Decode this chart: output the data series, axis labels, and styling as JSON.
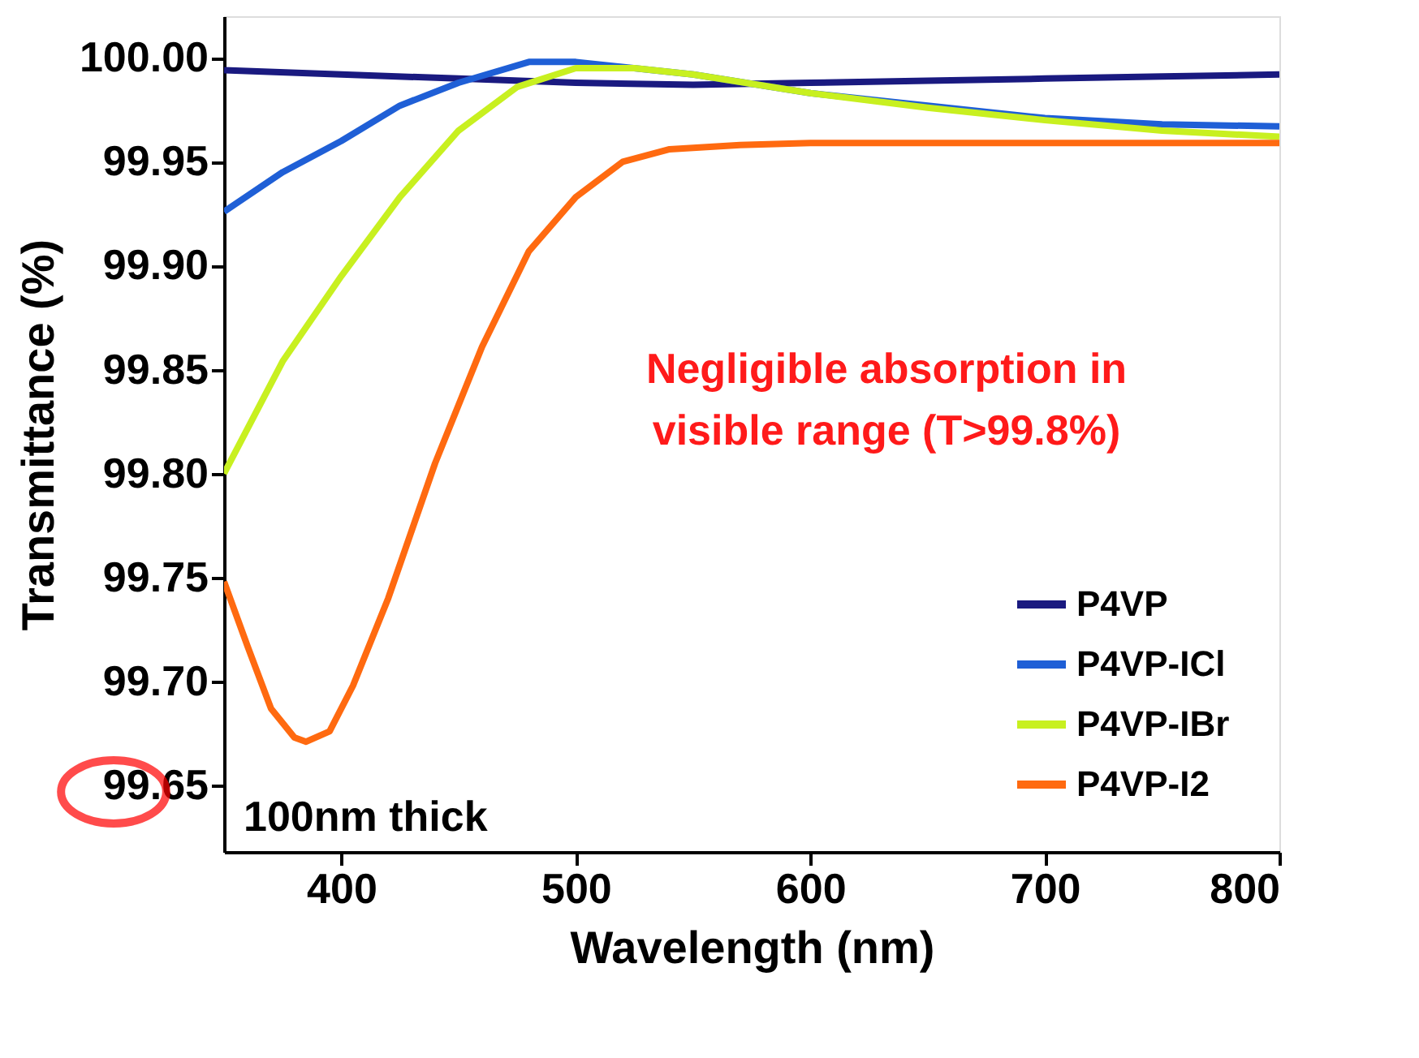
{
  "chart_data": {
    "type": "line",
    "xlabel": "Wavelength (nm)",
    "ylabel": "Transmittance (%)",
    "xlim": [
      350,
      800
    ],
    "xticks": [
      400,
      500,
      600,
      700,
      800
    ],
    "ylim": [
      99.618,
      100.02
    ],
    "yticks": [
      {
        "value": 99.65,
        "label": "99.65"
      },
      {
        "value": 99.7,
        "label": "99.70"
      },
      {
        "value": 99.75,
        "label": "99.75"
      },
      {
        "value": 99.8,
        "label": "99.80"
      },
      {
        "value": 99.85,
        "label": "99.85"
      },
      {
        "value": 99.9,
        "label": "99.90"
      },
      {
        "value": 99.95,
        "label": "99.95"
      },
      {
        "value": 100,
        "label": "100.00"
      }
    ],
    "grid": false,
    "legend": "bottom right",
    "line_style": "solid",
    "marker": "none",
    "annotations": [
      "Negligible absorption in\nvisible range (T>99.8%)",
      "100nm thick"
    ],
    "series": [
      {
        "name": "P4VP",
        "color": "#1a1a80",
        "x": [
          350,
          400,
          450,
          500,
          550,
          600,
          650,
          700,
          750,
          800
        ],
        "values": [
          99.994,
          99.992,
          99.99,
          99.988,
          99.987,
          99.988,
          99.989,
          99.99,
          99.991,
          99.992
        ]
      },
      {
        "name": "P4VP-ICl",
        "color": "#1f5fd6",
        "x": [
          350,
          375,
          400,
          425,
          450,
          480,
          500,
          550,
          600,
          650,
          700,
          750,
          800
        ],
        "values": [
          99.926,
          99.945,
          99.96,
          99.977,
          99.988,
          99.998,
          99.998,
          99.992,
          99.983,
          99.977,
          99.971,
          99.968,
          99.967
        ]
      },
      {
        "name": "P4VP-IBr",
        "color": "#c8f020",
        "x": [
          350,
          375,
          400,
          425,
          450,
          475,
          500,
          525,
          550,
          600,
          650,
          700,
          750,
          800
        ],
        "values": [
          99.8,
          99.854,
          99.895,
          99.933,
          99.965,
          99.986,
          99.995,
          99.995,
          99.992,
          99.983,
          99.976,
          99.97,
          99.965,
          99.962
        ]
      },
      {
        "name": "P4VP-I2",
        "color": "#ff6a10",
        "x": [
          350,
          360,
          370,
          380,
          385,
          395,
          405,
          420,
          440,
          460,
          480,
          500,
          520,
          540,
          570,
          600,
          700,
          800
        ],
        "values": [
          99.748,
          99.717,
          99.687,
          99.673,
          99.671,
          99.676,
          99.698,
          99.74,
          99.805,
          99.861,
          99.907,
          99.933,
          99.95,
          99.956,
          99.958,
          99.959,
          99.959,
          99.959
        ]
      }
    ]
  }
}
